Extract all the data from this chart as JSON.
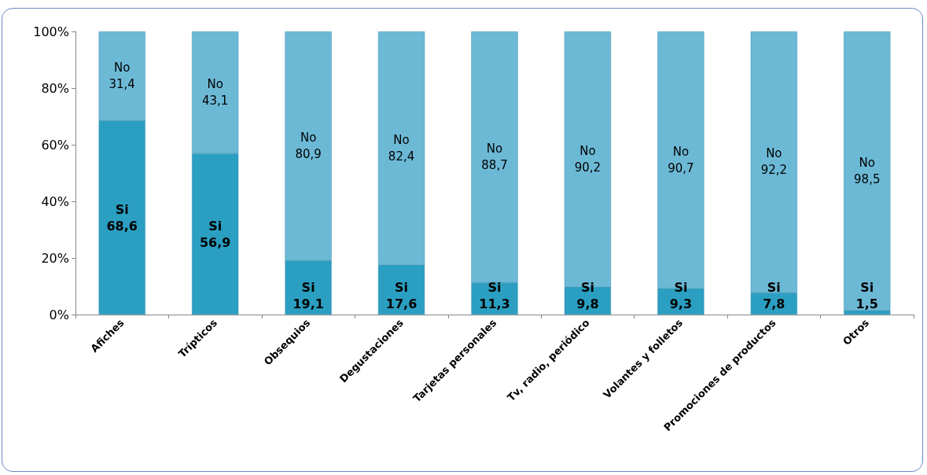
{
  "chart_data": {
    "type": "bar",
    "stacked": true,
    "categories": [
      "Afiches",
      "Trípticos",
      "Obsequios",
      "Degustaciones",
      "Tarjetas personales",
      "Tv, radio, periódico",
      "Volantes y folletos",
      "Promociones de productos",
      "Otros"
    ],
    "series": [
      {
        "name": "Si",
        "color": "#2b9fc2",
        "values": [
          68.6,
          56.9,
          19.1,
          17.6,
          11.3,
          9.8,
          9.3,
          7.8,
          1.5
        ],
        "value_labels": [
          "68,6",
          "56,9",
          "19,1",
          "17,6",
          "11,3",
          "9,8",
          "9,3",
          "7,8",
          "1,5"
        ]
      },
      {
        "name": "No",
        "color": "#6cb9d6",
        "values": [
          31.4,
          43.1,
          80.9,
          82.4,
          88.7,
          90.2,
          90.7,
          92.2,
          98.5
        ],
        "value_labels": [
          "31,4",
          "43,1",
          "80,9",
          "82,4",
          "88,7",
          "90,2",
          "90,7",
          "92,2",
          "98,5"
        ]
      }
    ],
    "ylim": [
      0,
      100
    ],
    "yticks": [
      {
        "value": 0,
        "label": "0%"
      },
      {
        "value": 20,
        "label": "20%"
      },
      {
        "value": 40,
        "label": "40%"
      },
      {
        "value": 60,
        "label": "60%"
      },
      {
        "value": 80,
        "label": "80%"
      },
      {
        "value": 100,
        "label": "100%"
      }
    ],
    "grid": false,
    "legend": false
  }
}
